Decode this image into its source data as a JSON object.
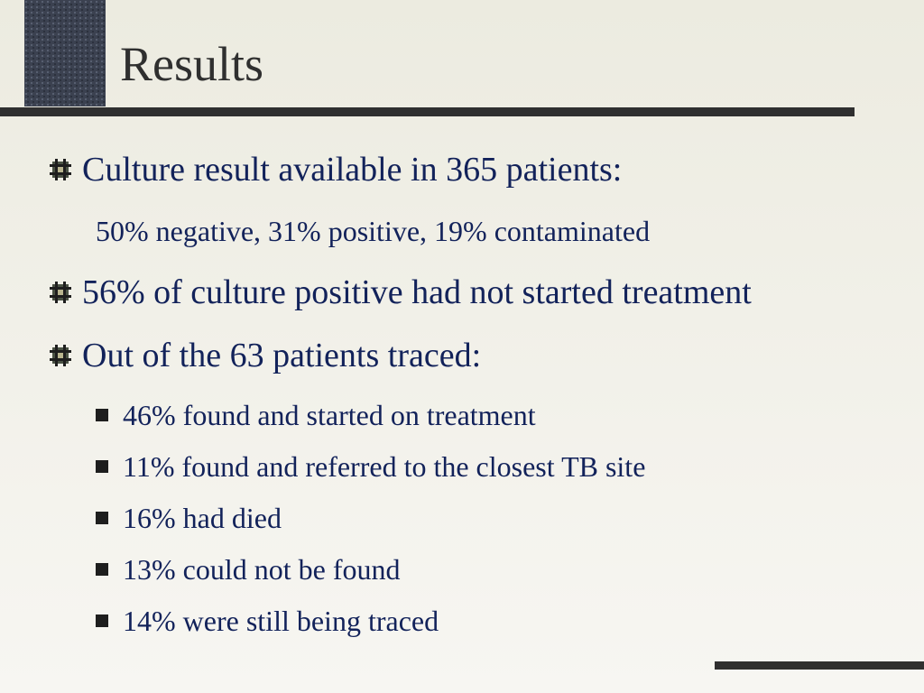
{
  "slide": {
    "title": "Results"
  },
  "bullets": [
    {
      "text": "Culture result available in 365 patients:",
      "icon": "hash-bullet-icon"
    },
    {
      "text": "56% of culture positive had not started treatment",
      "icon": "hash-bullet-icon"
    },
    {
      "text": "Out of the 63 patients traced:",
      "icon": "hash-bullet-icon"
    }
  ],
  "culture_breakdown": "50% negative, 31% positive, 19% contaminated",
  "traced_outcomes": [
    {
      "text": "46% found and started on treatment",
      "icon": "square-bullet-icon"
    },
    {
      "text": "11% found and referred to the closest TB site",
      "icon": "square-bullet-icon"
    },
    {
      "text": "16% had died",
      "icon": "square-bullet-icon"
    },
    {
      "text": "13% could not be found",
      "icon": "square-bullet-icon"
    },
    {
      "text": "14% were still being traced",
      "icon": "square-bullet-icon"
    }
  ],
  "colors": {
    "title": "#2f2f2f",
    "body_text": "#12225a",
    "rule": "#2f2f2f",
    "title_block": "#3b4150"
  }
}
